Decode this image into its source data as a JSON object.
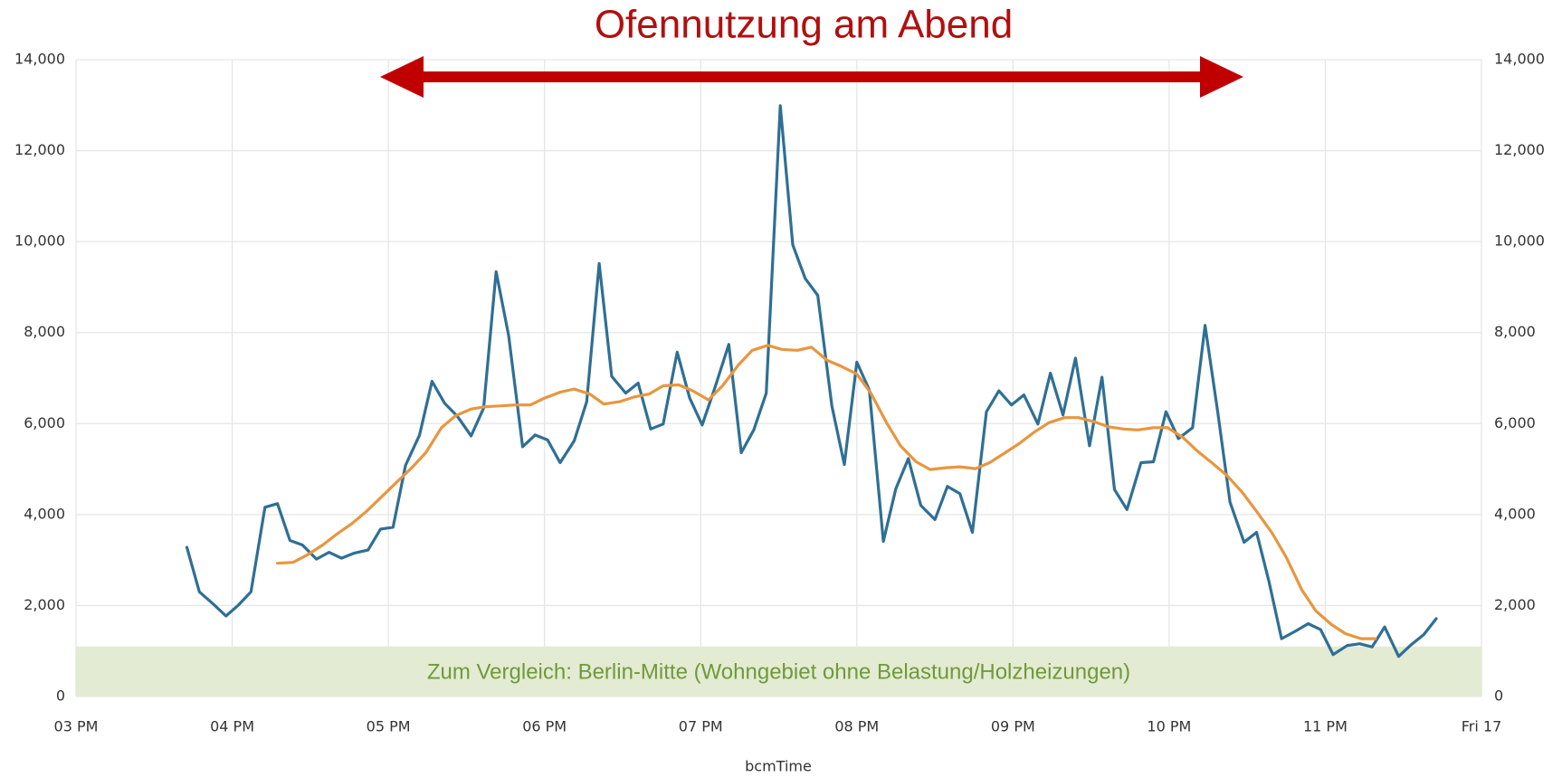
{
  "chart_data": {
    "type": "line",
    "title": "Ofennutzung am Abend",
    "xlabel": "bcmTime",
    "xlim": [
      15,
      24
    ],
    "xticks": [
      {
        "value": 15,
        "label": "03 PM"
      },
      {
        "value": 16,
        "label": "04 PM"
      },
      {
        "value": 17,
        "label": "05 PM"
      },
      {
        "value": 18,
        "label": "06 PM"
      },
      {
        "value": 19,
        "label": "07 PM"
      },
      {
        "value": 20,
        "label": "08 PM"
      },
      {
        "value": 21,
        "label": "09 PM"
      },
      {
        "value": 22,
        "label": "10 PM"
      },
      {
        "value": 23,
        "label": "11 PM"
      },
      {
        "value": 24,
        "label": "Fri 17"
      }
    ],
    "ylim": [
      0,
      14000
    ],
    "yticks": [
      0,
      {
        "value": 2000,
        "label": "2,000"
      },
      {
        "value": 4000,
        "label": "4,000"
      },
      {
        "value": 6000,
        "label": "6,000"
      },
      {
        "value": 8000,
        "label": "8,000"
      },
      {
        "value": 10000,
        "label": "10,000"
      },
      {
        "value": 12000,
        "label": "12,000"
      },
      {
        "value": 14000,
        "label": "14,000"
      }
    ],
    "y2lim": [
      0,
      14000
    ],
    "y2ticks": [
      0,
      {
        "value": 2000,
        "label": "2,000"
      },
      {
        "value": 4000,
        "label": "4,000"
      },
      {
        "value": 6000,
        "label": "6,000"
      },
      {
        "value": 8000,
        "label": "8,000"
      },
      {
        "value": 10000,
        "label": "10,000"
      },
      {
        "value": 12000,
        "label": "12,000"
      },
      {
        "value": 14000,
        "label": "14,000"
      }
    ],
    "grid": true,
    "band": {
      "label": "Zum Vergleich: Berlin-Mitte (Wohngebiet ohne Belastung/Holzheizungen)",
      "ymax": 1100,
      "color": "#e3ebd3",
      "text_color": "#6e9a3a"
    },
    "series": [
      {
        "color": "#2f6f95",
        "x": [
          15.71,
          15.79,
          15.88,
          15.96,
          16.04,
          16.12,
          16.21,
          16.29,
          16.37,
          16.45,
          16.54,
          16.62,
          16.7,
          16.78,
          16.87,
          16.95,
          17.03,
          17.11,
          17.2,
          17.28,
          17.36,
          17.44,
          17.53,
          17.61,
          17.69,
          17.77,
          17.86,
          17.94,
          18.02,
          18.1,
          18.19,
          18.27,
          18.35,
          18.43,
          18.52,
          18.6,
          18.68,
          18.76,
          18.85,
          18.93,
          19.01,
          19.09,
          19.18,
          19.26,
          19.34,
          19.42,
          19.51,
          19.59,
          19.67,
          19.75,
          19.84,
          19.92,
          20.0,
          20.08,
          20.17,
          20.25,
          20.33,
          20.41,
          20.5,
          20.58,
          20.66,
          20.74,
          20.83,
          20.91,
          20.99,
          21.07,
          21.16,
          21.24,
          21.32,
          21.4,
          21.49,
          21.57,
          21.65,
          21.73,
          21.82,
          21.9,
          21.98,
          22.06,
          22.15,
          22.23,
          22.31,
          22.39,
          22.48,
          22.56,
          22.64,
          22.72,
          22.81,
          22.89,
          22.97,
          23.05,
          23.14,
          23.22,
          23.3,
          23.38,
          23.47,
          23.55,
          23.63,
          23.71
        ],
        "values": [
          3280,
          2300,
          2030,
          1770,
          2010,
          2300,
          4160,
          4240,
          3430,
          3330,
          3020,
          3170,
          3040,
          3150,
          3220,
          3680,
          3720,
          5080,
          5750,
          6930,
          6450,
          6170,
          5730,
          6340,
          9340,
          7940,
          5490,
          5750,
          5640,
          5140,
          5620,
          6480,
          9520,
          7040,
          6670,
          6890,
          5880,
          5990,
          7570,
          6560,
          5970,
          6780,
          7740,
          5360,
          5860,
          6670,
          12990,
          9930,
          9190,
          8820,
          6390,
          5100,
          7350,
          6740,
          3410,
          4570,
          5230,
          4200,
          3890,
          4620,
          4460,
          3610,
          6260,
          6720,
          6410,
          6630,
          5990,
          7110,
          6190,
          7440,
          5510,
          7020,
          4550,
          4110,
          5140,
          5160,
          6260,
          5670,
          5910,
          8160,
          6280,
          4270,
          3390,
          3610,
          2520,
          1270,
          1440,
          1600,
          1470,
          920,
          1120,
          1160,
          1090,
          1530,
          880,
          1140,
          1360,
          1710
        ]
      },
      {
        "color": "#e8963f",
        "x": [
          16.29,
          16.39,
          16.48,
          16.58,
          16.67,
          16.77,
          16.86,
          16.96,
          17.05,
          17.15,
          17.24,
          17.34,
          17.43,
          17.53,
          17.62,
          17.72,
          17.81,
          17.91,
          18.0,
          18.1,
          18.19,
          18.29,
          18.38,
          18.48,
          18.57,
          18.67,
          18.76,
          18.86,
          18.95,
          19.05,
          19.14,
          19.24,
          19.33,
          19.43,
          19.52,
          19.62,
          19.71,
          19.81,
          19.9,
          20.0,
          20.09,
          20.19,
          20.28,
          20.38,
          20.47,
          20.57,
          20.66,
          20.76,
          20.85,
          20.95,
          21.04,
          21.14,
          21.23,
          21.33,
          21.42,
          21.52,
          21.61,
          21.71,
          21.8,
          21.9,
          21.99,
          22.09,
          22.18,
          22.28,
          22.37,
          22.47,
          22.56,
          22.66,
          22.75,
          22.85,
          22.94,
          23.04,
          23.13,
          23.23,
          23.32
        ],
        "values": [
          2930,
          2950,
          3110,
          3330,
          3570,
          3810,
          4070,
          4400,
          4700,
          5030,
          5360,
          5910,
          6170,
          6320,
          6370,
          6390,
          6410,
          6410,
          6560,
          6690,
          6760,
          6650,
          6430,
          6480,
          6580,
          6650,
          6830,
          6850,
          6720,
          6520,
          6830,
          7280,
          7610,
          7720,
          7630,
          7610,
          7680,
          7390,
          7260,
          7090,
          6670,
          6020,
          5510,
          5160,
          4990,
          5030,
          5050,
          5010,
          5140,
          5360,
          5560,
          5820,
          6020,
          6130,
          6130,
          6040,
          5930,
          5880,
          5860,
          5910,
          5910,
          5690,
          5400,
          5120,
          4860,
          4480,
          4070,
          3590,
          3060,
          2340,
          1880,
          1580,
          1380,
          1270,
          1270
        ]
      }
    ]
  }
}
